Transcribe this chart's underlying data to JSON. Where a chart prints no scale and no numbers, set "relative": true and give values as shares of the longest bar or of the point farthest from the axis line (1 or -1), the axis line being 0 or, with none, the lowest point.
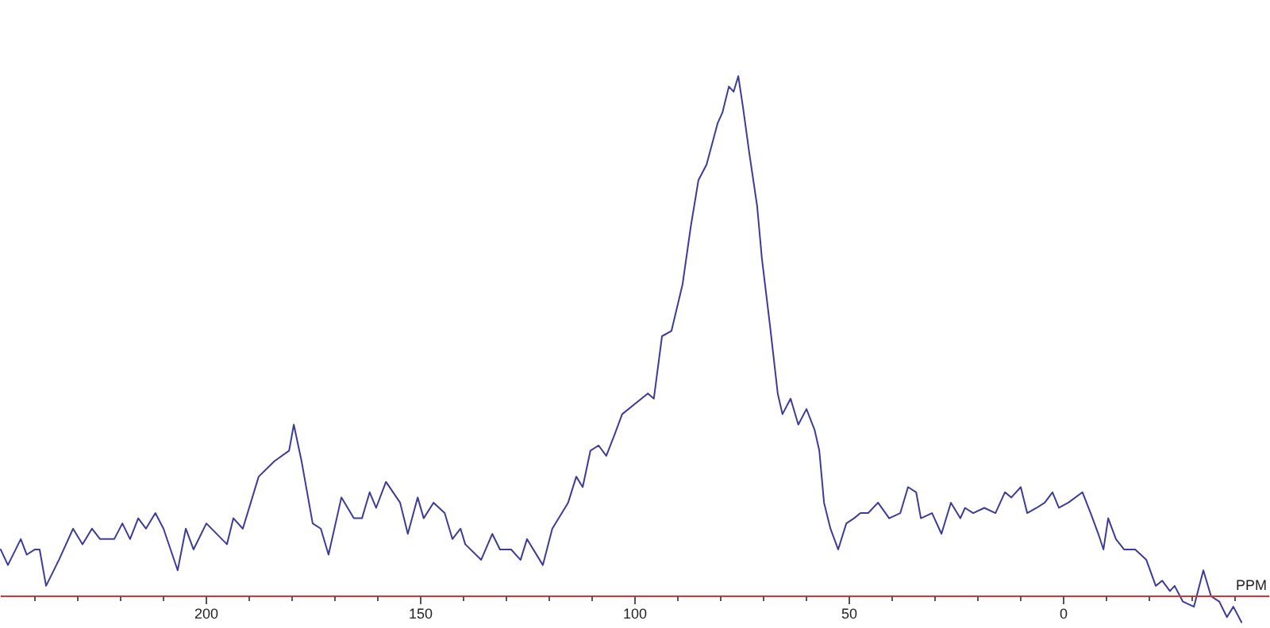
{
  "chart_data": {
    "type": "line",
    "relative": true,
    "xlabel": "PPM",
    "xlim": [
      248,
      -48
    ],
    "xticks": [
      {
        "value": 240,
        "label": null
      },
      {
        "value": 230,
        "label": null
      },
      {
        "value": 220,
        "label": null
      },
      {
        "value": 210,
        "label": null
      },
      200,
      {
        "value": 190,
        "label": null
      },
      {
        "value": 180,
        "label": null
      },
      {
        "value": 170,
        "label": null
      },
      {
        "value": 160,
        "label": null
      },
      150,
      {
        "value": 140,
        "label": null
      },
      {
        "value": 130,
        "label": null
      },
      {
        "value": 120,
        "label": null
      },
      {
        "value": 110,
        "label": null
      },
      100,
      {
        "value": 90,
        "label": null
      },
      {
        "value": 80,
        "label": null
      },
      {
        "value": 70,
        "label": null
      },
      {
        "value": 60,
        "label": null
      },
      50,
      {
        "value": 40,
        "label": null
      },
      {
        "value": 30,
        "label": null
      },
      {
        "value": 20,
        "label": null
      },
      {
        "value": 10,
        "label": null
      },
      0,
      {
        "value": -10,
        "label": null
      },
      {
        "value": -20,
        "label": null
      },
      {
        "value": -30,
        "label": null
      },
      {
        "value": -40,
        "label": null
      }
    ],
    "grid": false,
    "marker": "none",
    "line_style": "solid",
    "ref_lines": [
      {
        "axis": "y",
        "value": 0,
        "color": "#e03030"
      }
    ],
    "series": [
      {
        "color": "#3c3c98",
        "x": [
          248,
          246.3,
          243.3,
          241.9,
          240.0,
          238.9,
          237.4,
          234.4,
          231.1,
          228.9,
          226.7,
          224.8,
          221.5,
          219.6,
          217.8,
          215.9,
          214.1,
          211.9,
          210.0,
          206.7,
          204.8,
          203.0,
          200.0,
          195.2,
          193.7,
          191.5,
          187.8,
          184.1,
          180.7,
          179.6,
          177.8,
          175.2,
          173.3,
          171.5,
          168.5,
          165.6,
          163.7,
          161.9,
          160.4,
          158.1,
          154.8,
          153.0,
          150.7,
          149.3,
          147.0,
          144.4,
          142.6,
          140.7,
          139.6,
          135.9,
          133.3,
          131.5,
          128.9,
          126.7,
          125.2,
          121.5,
          119.3,
          115.6,
          113.7,
          112.2,
          110.4,
          108.5,
          106.7,
          104.8,
          103.0,
          100.0,
          97.0,
          95.6,
          93.7,
          91.5,
          88.9,
          87.0,
          85.2,
          83.3,
          80.7,
          79.6,
          78.1,
          77.0,
          75.9,
          74.8,
          73.3,
          71.5,
          70.4,
          68.5,
          66.7,
          65.6,
          63.7,
          61.9,
          60.0,
          58.1,
          57.0,
          55.9,
          54.4,
          52.6,
          50.7,
          48.9,
          47.4,
          45.6,
          43.3,
          40.7,
          38.1,
          36.3,
          34.4,
          33.3,
          30.7,
          28.5,
          26.3,
          24.1,
          23.0,
          21.1,
          18.5,
          15.9,
          13.7,
          12.2,
          10.0,
          8.5,
          6.3,
          4.4,
          2.6,
          1.1,
          -1.1,
          -4.4,
          -6.3,
          -8.1,
          -9.3,
          -10.4,
          -12.2,
          -14.1,
          -16.7,
          -19.3,
          -21.5,
          -23.0,
          -24.8,
          -25.9,
          -27.8,
          -30.4,
          -32.6,
          -34.4,
          -36.3,
          -38.1,
          -39.6,
          -41.5
        ],
        "values": [
          0.09,
          0.06,
          0.11,
          0.08,
          0.09,
          0.09,
          0.02,
          0.07,
          0.13,
          0.1,
          0.13,
          0.11,
          0.11,
          0.14,
          0.11,
          0.15,
          0.13,
          0.16,
          0.13,
          0.05,
          0.13,
          0.09,
          0.14,
          0.1,
          0.15,
          0.13,
          0.23,
          0.26,
          0.28,
          0.33,
          0.26,
          0.14,
          0.13,
          0.08,
          0.19,
          0.15,
          0.15,
          0.2,
          0.17,
          0.22,
          0.18,
          0.12,
          0.19,
          0.15,
          0.18,
          0.16,
          0.11,
          0.13,
          0.1,
          0.07,
          0.12,
          0.09,
          0.09,
          0.07,
          0.11,
          0.06,
          0.13,
          0.18,
          0.23,
          0.21,
          0.28,
          0.29,
          0.27,
          0.31,
          0.35,
          0.37,
          0.39,
          0.38,
          0.5,
          0.51,
          0.6,
          0.71,
          0.8,
          0.83,
          0.91,
          0.93,
          0.98,
          0.97,
          1,
          0.94,
          0.85,
          0.75,
          0.65,
          0.52,
          0.39,
          0.35,
          0.38,
          0.33,
          0.36,
          0.32,
          0.28,
          0.18,
          0.13,
          0.09,
          0.14,
          0.15,
          0.16,
          0.16,
          0.18,
          0.15,
          0.16,
          0.21,
          0.2,
          0.15,
          0.16,
          0.12,
          0.18,
          0.15,
          0.17,
          0.16,
          0.17,
          0.16,
          0.2,
          0.19,
          0.21,
          0.16,
          0.17,
          0.18,
          0.2,
          0.17,
          0.18,
          0.2,
          0.16,
          0.12,
          0.09,
          0.15,
          0.11,
          0.09,
          0.09,
          0.07,
          0.02,
          0.03,
          0.01,
          0.02,
          -0.01,
          -0.02,
          0.05,
          0,
          -0.01,
          -0.04,
          -0.02,
          -0.05
        ]
      }
    ]
  }
}
